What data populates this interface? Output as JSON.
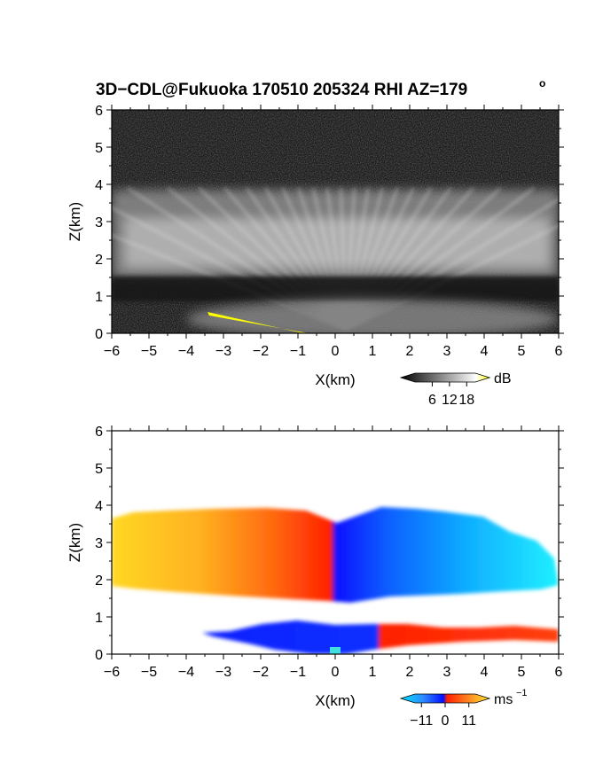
{
  "figure": {
    "title": "3D−CDL@Fukuoka 170510 205324 RHI AZ=179",
    "title_superscript": "o"
  },
  "chart_data": [
    {
      "id": "reflectivity",
      "type": "heatmap",
      "xlabel": "X(km)",
      "ylabel": "Z(km)",
      "xlim": [
        -6,
        6
      ],
      "ylim": [
        0,
        6
      ],
      "xticks": [
        -6,
        -5,
        -4,
        -3,
        -2,
        -1,
        0,
        1,
        2,
        3,
        4,
        5,
        6
      ],
      "yticks": [
        0,
        1,
        2,
        3,
        4,
        5,
        6
      ],
      "colormap": "grayscale",
      "colorbar": {
        "unit": "dB",
        "tick_labels": [
          "6",
          "12",
          "18"
        ],
        "ticks": [
          6,
          12,
          18
        ],
        "range": [
          0,
          21
        ],
        "colors": [
          "#000000",
          "#ffffff",
          "#ffff00"
        ]
      },
      "features": {
        "cloud_layer_km": [
          1.3,
          4.0
        ],
        "brightest_layer_km": [
          1.8,
          3.5
        ],
        "lower_layer_km": [
          0.0,
          0.9
        ],
        "ground_echo_color": "#ffff00",
        "ground_echo_x_km": [
          -3.4,
          -0.7
        ]
      }
    },
    {
      "id": "doppler_velocity",
      "type": "heatmap",
      "xlabel": "X(km)",
      "ylabel": "Z(km)",
      "xlim": [
        -6,
        6
      ],
      "ylim": [
        0,
        6
      ],
      "xticks": [
        -6,
        -5,
        -4,
        -3,
        -2,
        -1,
        0,
        1,
        2,
        3,
        4,
        5,
        6
      ],
      "yticks": [
        0,
        1,
        2,
        3,
        4,
        5,
        6
      ],
      "colormap": "diverging",
      "colorbar": {
        "unit": "ms",
        "unit_exponent": "−1",
        "tick_labels": [
          "−11",
          "0",
          "11"
        ],
        "ticks": [
          -11,
          0,
          11
        ],
        "range": [
          -14,
          14
        ],
        "colors": [
          "#00e5ff",
          "#2e8bff",
          "#0010ff",
          "#ff2000",
          "#ff8020",
          "#ffe830"
        ]
      },
      "features": {
        "upper_layer_km": [
          1.4,
          4.0
        ],
        "upper_layer_x_km": [
          -6,
          6
        ],
        "lower_layer_km": [
          0.0,
          0.8
        ],
        "lower_layer_x_km": [
          -3.6,
          6
        ],
        "velocity_left_ms": 11,
        "velocity_right_ms": -11
      }
    }
  ]
}
